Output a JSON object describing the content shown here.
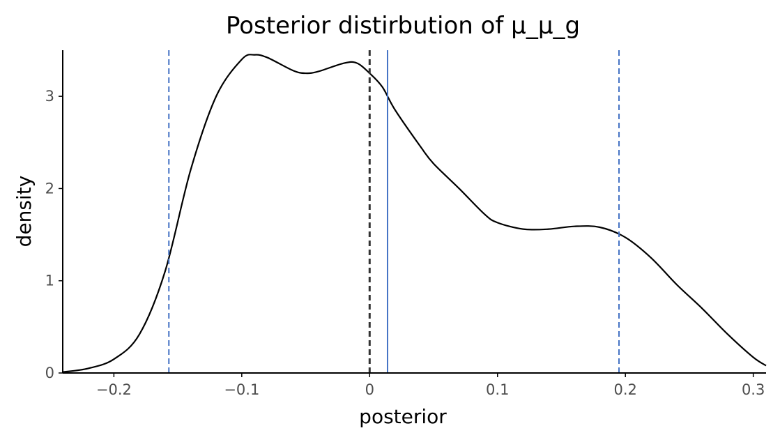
{
  "chart_data": {
    "type": "line",
    "title": "Posterior distirbution of μ_μ_g",
    "xlabel": "posterior",
    "ylabel": "density",
    "xlim": [
      -0.24,
      0.31
    ],
    "ylim": [
      0,
      3.5
    ],
    "x_ticks": [
      {
        "value": -0.2,
        "label": "−0.2"
      },
      {
        "value": -0.1,
        "label": "−0.1"
      },
      {
        "value": 0,
        "label": "0"
      },
      {
        "value": 0.1,
        "label": "0.1"
      },
      {
        "value": 0.2,
        "label": "0.2"
      },
      {
        "value": 0.3,
        "label": "0.3"
      }
    ],
    "y_ticks": [
      {
        "value": 0,
        "label": "0"
      },
      {
        "value": 1,
        "label": "1"
      },
      {
        "value": 2,
        "label": "2"
      },
      {
        "value": 3,
        "label": "3"
      }
    ],
    "grid": false,
    "series": [
      {
        "color": "#000000",
        "points": [
          [
            -0.24,
            0.01
          ],
          [
            -0.22,
            0.05
          ],
          [
            -0.2,
            0.15
          ],
          [
            -0.18,
            0.42
          ],
          [
            -0.16,
            1.1
          ],
          [
            -0.14,
            2.2
          ],
          [
            -0.12,
            3.0
          ],
          [
            -0.1,
            3.4
          ],
          [
            -0.09,
            3.45
          ],
          [
            -0.08,
            3.42
          ],
          [
            -0.06,
            3.28
          ],
          [
            -0.05,
            3.25
          ],
          [
            -0.04,
            3.27
          ],
          [
            -0.02,
            3.36
          ],
          [
            -0.01,
            3.36
          ],
          [
            0,
            3.25
          ],
          [
            0.01,
            3.1
          ],
          [
            0.02,
            2.85
          ],
          [
            0.04,
            2.45
          ],
          [
            0.05,
            2.27
          ],
          [
            0.07,
            2.0
          ],
          [
            0.09,
            1.72
          ],
          [
            0.1,
            1.63
          ],
          [
            0.12,
            1.56
          ],
          [
            0.14,
            1.56
          ],
          [
            0.16,
            1.59
          ],
          [
            0.18,
            1.58
          ],
          [
            0.2,
            1.47
          ],
          [
            0.22,
            1.25
          ],
          [
            0.24,
            0.96
          ],
          [
            0.26,
            0.7
          ],
          [
            0.28,
            0.42
          ],
          [
            0.3,
            0.17
          ],
          [
            0.31,
            0.08
          ]
        ]
      }
    ],
    "reference_lines": [
      {
        "x": 0,
        "color": "#333333",
        "style": "dashed"
      },
      {
        "x": 0.014,
        "color": "#4472c4",
        "style": "solid"
      },
      {
        "x": -0.157,
        "color": "#4472c4",
        "style": "dashed"
      },
      {
        "x": 0.195,
        "color": "#4472c4",
        "style": "dashed"
      }
    ]
  }
}
